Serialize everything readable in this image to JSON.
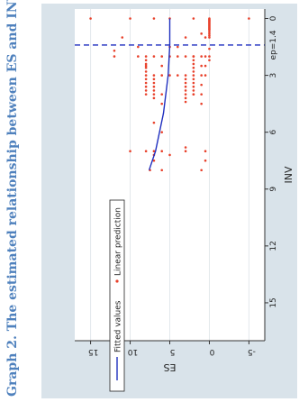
{
  "title": "Graph 2. The estimated relationship between ES and INV",
  "chart_data": {
    "type": "scatter",
    "orientation": "rotated-90-ccw",
    "xlabel": "INV",
    "ylabel": "ES",
    "xlim": [
      -0.5,
      17
    ],
    "ylim": [
      -7,
      17
    ],
    "x_ticks": [
      "0",
      "3",
      "6",
      "9",
      "12",
      "15"
    ],
    "y_ticks": [
      "-5",
      "0",
      "5",
      "10",
      "15"
    ],
    "grid": true,
    "legend": {
      "placement": "bottom",
      "entries": [
        {
          "label": "Fitted values",
          "marker": "line",
          "color": "#1f2fbf"
        },
        {
          "label": "Linear prediction",
          "marker": "dot",
          "color": "#e8402a"
        }
      ]
    },
    "annotations": [
      {
        "text": "ep=1.4",
        "x": 1.4,
        "style": "dashed-vertical",
        "color": "#1f2fbf"
      }
    ],
    "series": [
      {
        "name": "Fitted values",
        "type": "line",
        "color": "#1f2fbf",
        "points": [
          [
            0.0,
            5.0
          ],
          [
            1.4,
            5.0
          ],
          [
            3.0,
            5.2
          ],
          [
            5.0,
            5.8
          ],
          [
            7.0,
            6.8
          ],
          [
            8.0,
            7.6
          ]
        ]
      },
      {
        "name": "Linear prediction",
        "type": "scatter",
        "color": "#e8402a",
        "points": [
          [
            0.0,
            0.0
          ],
          [
            0.05,
            0.0
          ],
          [
            0.1,
            0.0
          ],
          [
            0.15,
            0.0
          ],
          [
            0.2,
            0.0
          ],
          [
            0.25,
            0.0
          ],
          [
            0.3,
            0.0
          ],
          [
            0.35,
            0.0
          ],
          [
            0.4,
            0.0
          ],
          [
            0.45,
            0.0
          ],
          [
            0.5,
            0.0
          ],
          [
            0.55,
            0.0
          ],
          [
            0.6,
            0.0
          ],
          [
            0.7,
            0.0
          ],
          [
            0.8,
            0.0
          ],
          [
            0.9,
            0.0
          ],
          [
            1.0,
            0.0
          ],
          [
            0.0,
            2.0
          ],
          [
            0.0,
            5.0
          ],
          [
            0.0,
            7.0
          ],
          [
            0.0,
            10.0
          ],
          [
            0.0,
            15.0
          ],
          [
            0.0,
            -5.0
          ],
          [
            0.8,
            1.0
          ],
          [
            1.0,
            0.5
          ],
          [
            1.6,
            0.0
          ],
          [
            2.0,
            0.0
          ],
          [
            2.2,
            0.0
          ],
          [
            1.7,
            12.0
          ],
          [
            2.0,
            12.0
          ],
          [
            1.0,
            11.0
          ],
          [
            1.5,
            9.0
          ],
          [
            2.0,
            9.0
          ],
          [
            2.5,
            8.0
          ],
          [
            1.0,
            3.0
          ],
          [
            1.5,
            5.0
          ],
          [
            2.0,
            5.0
          ],
          [
            2.5,
            6.0
          ],
          [
            2.0,
            2.0
          ],
          [
            2.0,
            3.0
          ],
          [
            2.0,
            4.0
          ],
          [
            2.0,
            6.0
          ],
          [
            2.0,
            7.0
          ],
          [
            1.5,
            4.0
          ],
          [
            3.0,
            4.0
          ],
          [
            4.0,
            2.0
          ],
          [
            2.0,
            1.0
          ],
          [
            2.5,
            1.0
          ],
          [
            3.0,
            1.0
          ],
          [
            3.5,
            1.0
          ],
          [
            4.0,
            1.0
          ],
          [
            4.5,
            1.0
          ],
          [
            2.0,
            0.5
          ],
          [
            2.5,
            0.5
          ],
          [
            3.0,
            0.5
          ],
          [
            2.0,
            2.0
          ],
          [
            2.2,
            2.0
          ],
          [
            2.4,
            2.0
          ],
          [
            2.6,
            2.0
          ],
          [
            2.8,
            2.0
          ],
          [
            3.0,
            2.0
          ],
          [
            3.2,
            2.0
          ],
          [
            3.4,
            2.0
          ],
          [
            3.6,
            2.0
          ],
          [
            3.8,
            2.0
          ],
          [
            4.0,
            2.0
          ],
          [
            2.0,
            8.0
          ],
          [
            2.2,
            8.0
          ],
          [
            2.4,
            8.0
          ],
          [
            2.6,
            8.0
          ],
          [
            2.8,
            8.0
          ],
          [
            3.0,
            8.0
          ],
          [
            3.2,
            8.0
          ],
          [
            3.4,
            8.0
          ],
          [
            3.6,
            8.0
          ],
          [
            3.8,
            8.0
          ],
          [
            4.0,
            8.0
          ],
          [
            3.0,
            7.0
          ],
          [
            3.2,
            7.0
          ],
          [
            3.4,
            7.0
          ],
          [
            3.6,
            7.0
          ],
          [
            3.8,
            7.0
          ],
          [
            4.0,
            7.0
          ],
          [
            4.2,
            7.0
          ],
          [
            3.0,
            3.0
          ],
          [
            3.2,
            3.0
          ],
          [
            3.4,
            3.0
          ],
          [
            3.6,
            3.0
          ],
          [
            3.8,
            3.0
          ],
          [
            4.0,
            3.0
          ],
          [
            4.2,
            3.0
          ],
          [
            4.4,
            3.0
          ],
          [
            3.0,
            5.0
          ],
          [
            3.0,
            6.0
          ],
          [
            4.0,
            6.0
          ],
          [
            4.5,
            6.0
          ],
          [
            5.5,
            7.0
          ],
          [
            6.0,
            6.0
          ],
          [
            7.0,
            7.0
          ],
          [
            7.2,
            7.0
          ],
          [
            7.5,
            7.0
          ],
          [
            7.0,
            8.0
          ],
          [
            7.0,
            3.0
          ],
          [
            6.8,
            3.0
          ],
          [
            7.0,
            10.0
          ],
          [
            7.0,
            6.0
          ],
          [
            7.2,
            5.0
          ],
          [
            8.0,
            6.0
          ],
          [
            8.0,
            7.5
          ],
          [
            7.0,
            0.5
          ],
          [
            7.5,
            0.5
          ],
          [
            8.0,
            1.0
          ]
        ]
      }
    ]
  }
}
